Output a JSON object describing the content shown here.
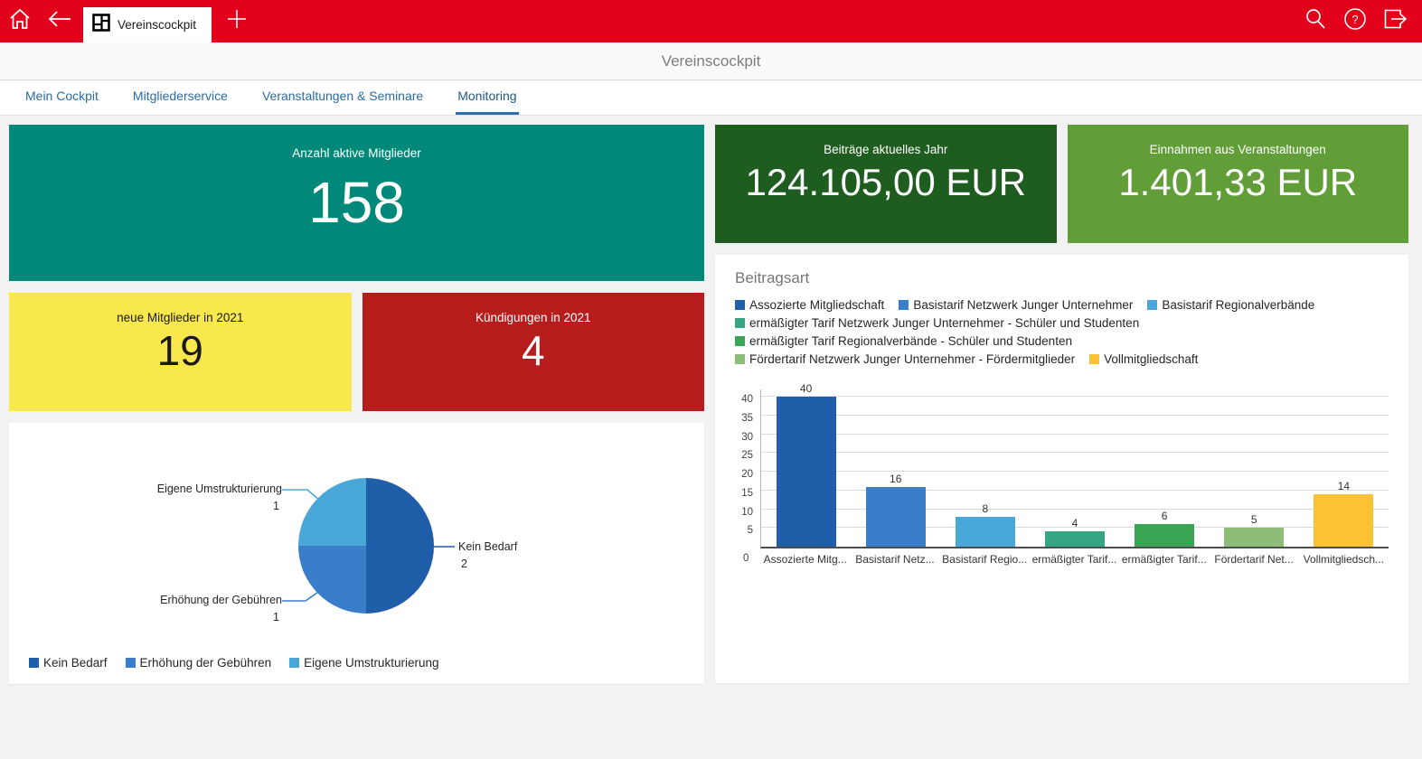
{
  "colors": {
    "topbar": "#e2001a",
    "tab_active_underline": "#2f6fae",
    "tile_active_members": "#008878",
    "tile_new_members": "#f9e74e",
    "tile_cancellations": "#b81d1d",
    "tile_fees": "#1e5c20",
    "tile_event_income": "#619e38"
  },
  "topbar": {
    "browser_tab_label": "Vereinscockpit",
    "left_icons": [
      "home-icon",
      "back-icon"
    ],
    "tab_icon": "dashboard-grid-icon",
    "right_icons": [
      "search-icon",
      "help-icon",
      "logout-icon"
    ]
  },
  "header": {
    "title": "Vereinscockpit"
  },
  "tabs": [
    {
      "label": "Mein Cockpit",
      "active": false
    },
    {
      "label": "Mitgliederservice",
      "active": false
    },
    {
      "label": "Veranstaltungen & Seminare",
      "active": false
    },
    {
      "label": "Monitoring",
      "active": true
    }
  ],
  "tiles": {
    "active_members": {
      "label": "Anzahl aktive Mitglieder",
      "value": "158",
      "bg": "#008878",
      "text": "#ffffff"
    },
    "new_members": {
      "label": "neue Mitglieder in 2021",
      "value": "19",
      "bg": "#f9e74e",
      "text": "#1a1a1a"
    },
    "cancellations": {
      "label": "Kündigungen in 2021",
      "value": "4",
      "bg": "#b81d1d",
      "text": "#ffffff"
    },
    "fees_current_year": {
      "label": "Beiträge aktuelles Jahr",
      "value": "124.105,00 EUR",
      "bg": "#1e5c20",
      "text": "#ffffff"
    },
    "event_income": {
      "label": "Einnahmen aus Veranstaltungen",
      "value": "1.401,33 EUR",
      "bg": "#619e38",
      "text": "#ffffff"
    }
  },
  "chart_data": [
    {
      "type": "pie",
      "title": "",
      "labels": [
        "Kein Bedarf",
        "Erhöhung der Gebühren",
        "Eigene Umstrukturierung"
      ],
      "values": [
        2,
        1,
        1
      ],
      "colors": [
        "#1f5fa9",
        "#3a7dc9",
        "#4aa8d8"
      ],
      "legend_position": "bottom",
      "annotations": "callout labels with value under each label"
    },
    {
      "type": "bar",
      "title": "Beitragsart",
      "categories": [
        "Assozierte Mitgliedschaft",
        "Basistarif Netzwerk Junger Unternehmer",
        "Basistarif Regionalverbände",
        "ermäßigter Tarif Netzwerk Junger Unternehmer - Schüler und Studenten",
        "ermäßigter Tarif Regionalverbände - Schüler und Studenten",
        "Fördertarif Netzwerk Junger Unternehmer - Fördermitglieder",
        "Vollmitgliedschaft"
      ],
      "categories_truncated": [
        "Assozierte Mitg...",
        "Basistarif Netz...",
        "Basistarif Regio...",
        "ermäßigter Tarif...",
        "ermäßigter Tarif...",
        "Fördertarif Net...",
        "Vollmitgliedsch..."
      ],
      "values": [
        40,
        16,
        8,
        4,
        6,
        5,
        14
      ],
      "colors": [
        "#1f5fa9",
        "#3a7dc9",
        "#4aa8d8",
        "#35a584",
        "#3aa655",
        "#8cbe78",
        "#fbc233"
      ],
      "ylabel": "",
      "xlabel": "",
      "ylim": [
        0,
        42.5
      ],
      "yticks": [
        0,
        5,
        10,
        15,
        20,
        25,
        30,
        35,
        40
      ],
      "grid": true,
      "legend_position": "top"
    }
  ]
}
